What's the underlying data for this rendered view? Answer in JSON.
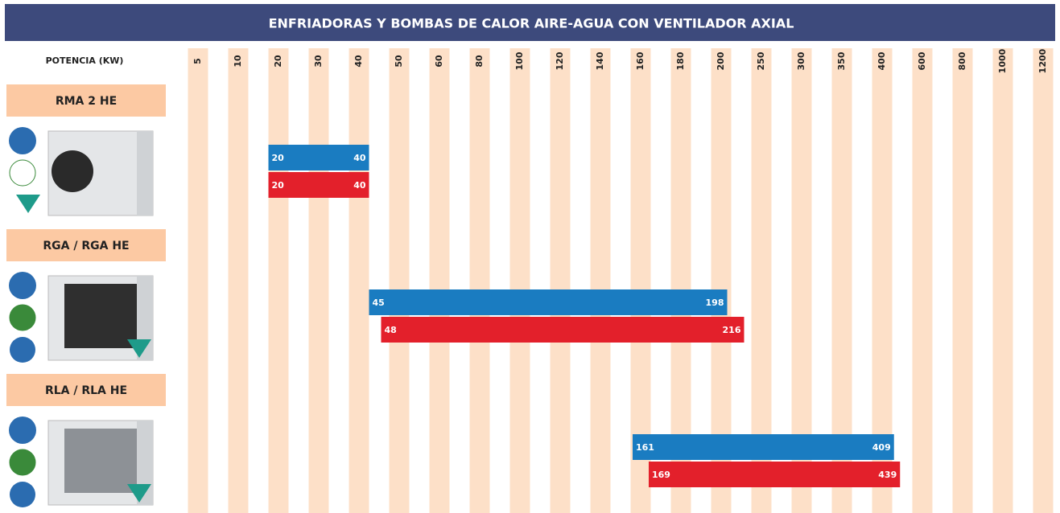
{
  "chart_data": {
    "type": "range_bar",
    "title": "ENFRIADORAS Y BOMBAS DE CALOR AIRE-AGUA CON VENTILADOR AXIAL",
    "x_label": "POTENCIA (KW)",
    "xticks": [
      5,
      10,
      20,
      30,
      40,
      50,
      60,
      80,
      100,
      120,
      140,
      160,
      180,
      200,
      250,
      300,
      350,
      400,
      600,
      800,
      1000,
      1200
    ],
    "grid": true,
    "grid_color": "#fde0c8",
    "group_color": "#fcc9a3",
    "groups": [
      {
        "name": "RMA 2 HE",
        "series": [
          {
            "color": "#1a7cc1",
            "values": [
              20,
              40
            ]
          },
          {
            "color": "#e3202b",
            "values": [
              20,
              40
            ]
          }
        ]
      },
      {
        "name": "RGA / RGA HE",
        "series": [
          {
            "color": "#1a7cc1",
            "values": [
              45,
              198
            ]
          },
          {
            "color": "#e3202b",
            "values": [
              48,
              216
            ]
          }
        ]
      },
      {
        "name": "RLA / RLA HE",
        "series": [
          {
            "color": "#1a7cc1",
            "values": [
              161,
              409
            ]
          },
          {
            "color": "#e3202b",
            "values": [
              169,
              439
            ]
          }
        ]
      }
    ]
  }
}
